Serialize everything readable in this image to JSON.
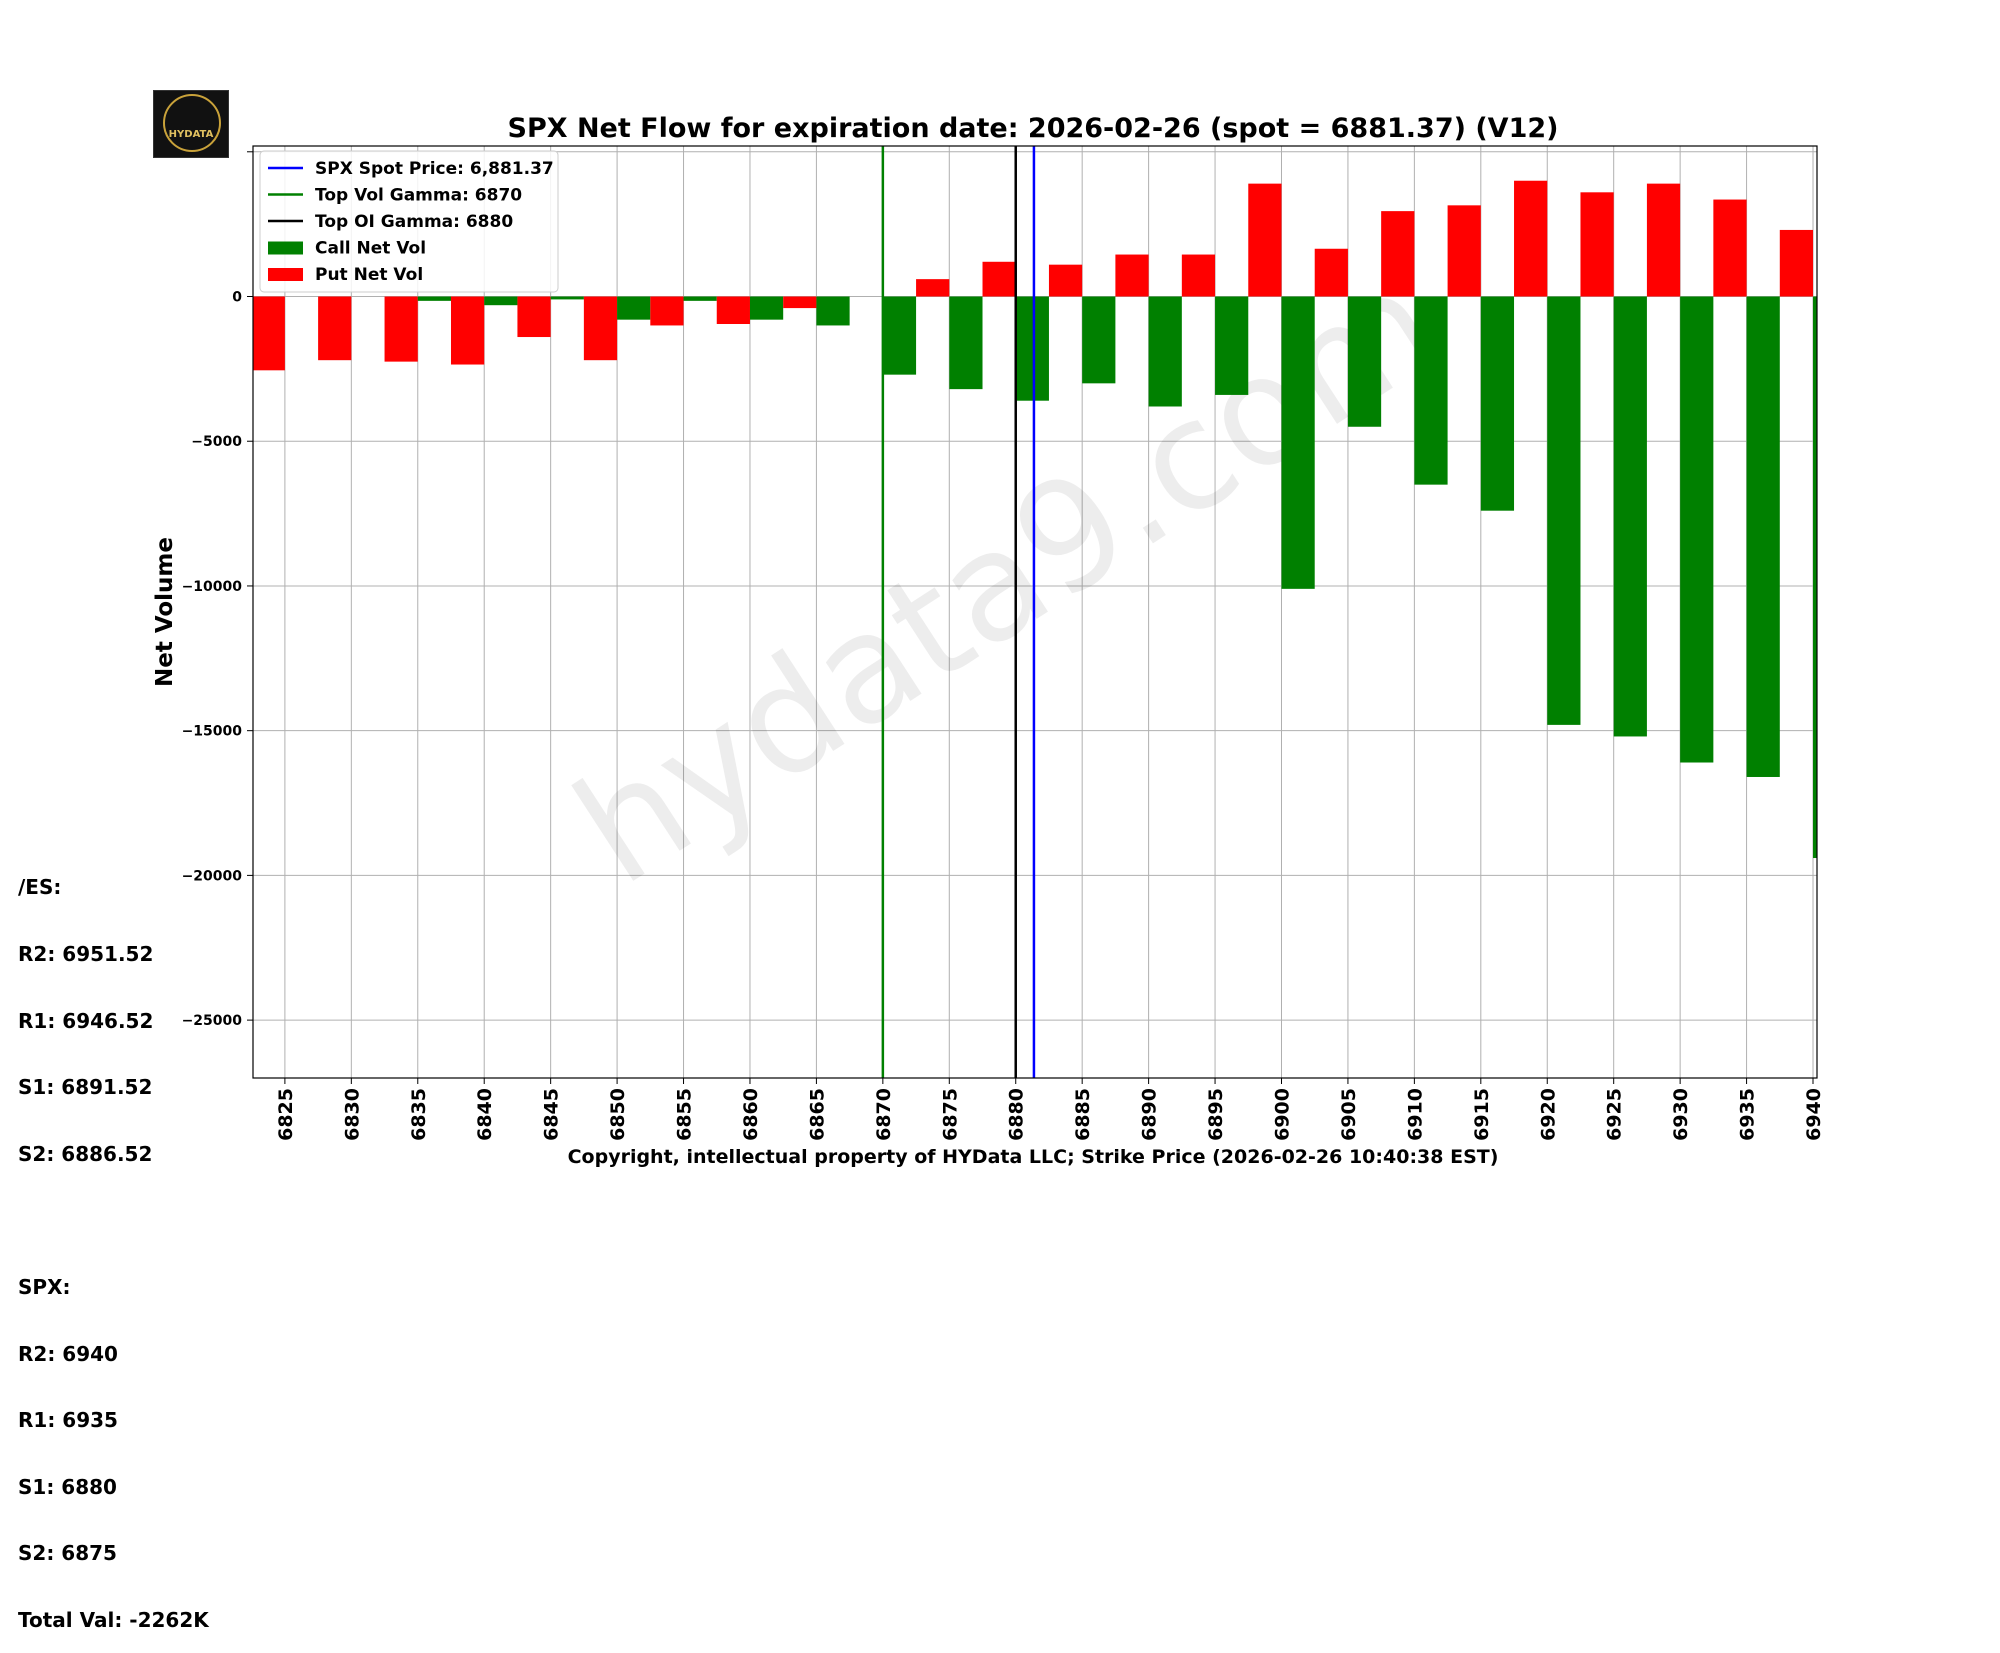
{
  "logo": {
    "text": "HYDATA",
    "icon": "wolf-logo-icon"
  },
  "chart_data": {
    "type": "bar",
    "title": "SPX Net Flow for expiration date: 2026-02-26 (spot = 6881.37) (V12)",
    "xlabel": "Copyright, intellectual property of HYData LLC; Strike Price (2026-02-26 10:40:38 EST)",
    "ylabel": "Net Volume",
    "ylim": [
      -27000,
      5200
    ],
    "xlim": [
      6822.6,
      6940.3
    ],
    "yticks": [
      0,
      -5000,
      -10000,
      -15000,
      -20000,
      -25000
    ],
    "ytick_labels": [
      "0",
      "−5000",
      "−10000",
      "−15000",
      "−20000",
      "−25000"
    ],
    "grid": true,
    "legend_position": "top-left",
    "categories": [
      6825,
      6830,
      6835,
      6840,
      6845,
      6850,
      6855,
      6860,
      6865,
      6870,
      6875,
      6880,
      6885,
      6890,
      6895,
      6900,
      6905,
      6910,
      6915,
      6920,
      6925,
      6930,
      6935,
      6940
    ],
    "series": [
      {
        "name": "Call Net Vol",
        "color": "#008000",
        "values": [
          0,
          0,
          -150,
          -300,
          -100,
          -800,
          -150,
          -800,
          -1000,
          -2700,
          -3200,
          -3600,
          -3000,
          -3800,
          -3400,
          -10100,
          -4500,
          -6500,
          -7400,
          -14800,
          -15200,
          -16100,
          -16600,
          -19400
        ]
      },
      {
        "name": "Put Net Vol",
        "color": "#ff0000",
        "values": [
          -2550,
          -2200,
          -2250,
          -2350,
          -1400,
          -2200,
          -1000,
          -950,
          -400,
          0,
          600,
          1200,
          1100,
          1450,
          1450,
          3900,
          1650,
          2950,
          3150,
          4000,
          3600,
          3900,
          3350,
          2300
        ]
      }
    ],
    "vlines": [
      {
        "name": "SPX Spot Price: 6,881.37",
        "x": 6881.37,
        "color": "#0000ff"
      },
      {
        "name": "Top Vol Gamma: 6870",
        "x": 6870,
        "color": "#008000"
      },
      {
        "name": "Top OI Gamma: 6880",
        "x": 6880,
        "color": "#000000"
      }
    ],
    "legend": [
      {
        "label": "SPX Spot Price: 6,881.37",
        "kind": "line",
        "color": "#0000ff"
      },
      {
        "label": "Top Vol Gamma: 6870",
        "kind": "line",
        "color": "#008000"
      },
      {
        "label": "Top OI Gamma: 6880",
        "kind": "line",
        "color": "#000000"
      },
      {
        "label": "Call Net Vol",
        "kind": "patch",
        "color": "#008000"
      },
      {
        "label": "Put Net Vol",
        "kind": "patch",
        "color": "#ff0000"
      }
    ],
    "watermark": "hydata9.com"
  },
  "levels": {
    "es_title": "/ES:",
    "es_r2": "R2: 6951.52",
    "es_r1": "R1: 6946.52",
    "es_s1": "S1: 6891.52",
    "es_s2": "S2: 6886.52",
    "spx_title": "SPX:",
    "spx_r2": "R2: 6940",
    "spx_r1": "R1: 6935",
    "spx_s1": "S1: 6880",
    "spx_s2": "S2: 6875",
    "total": "Total Val: -2262K"
  }
}
